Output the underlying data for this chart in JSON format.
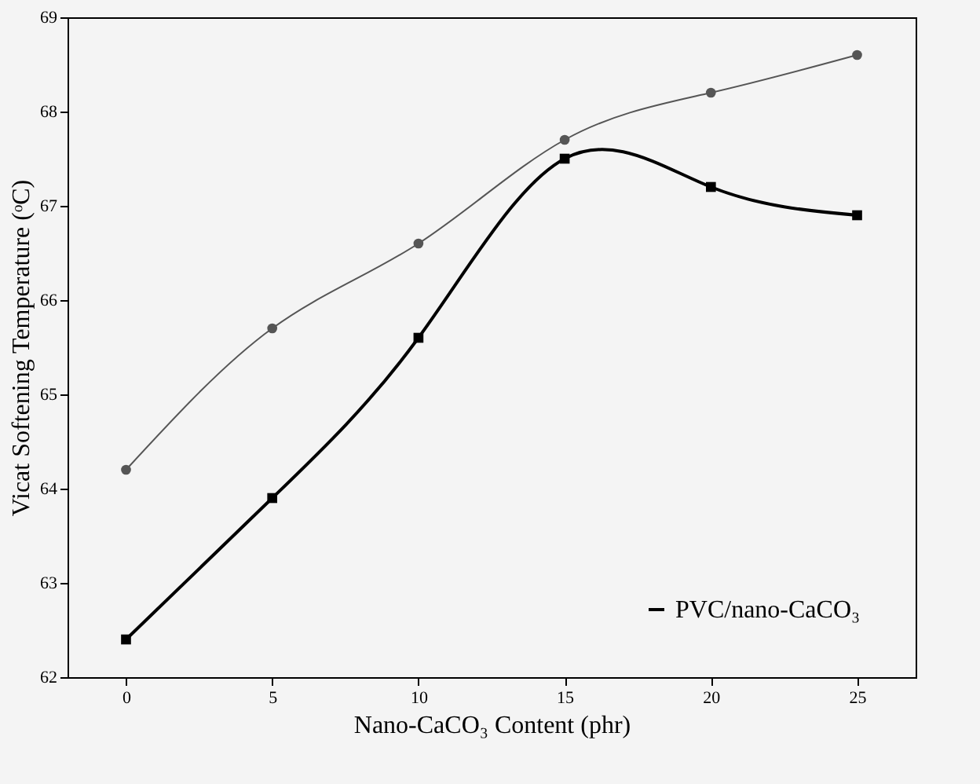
{
  "chart_data": {
    "type": "line",
    "xlabel": "Nano-CaCO₃ Content (phr)",
    "ylabel": "Vicat Softening Temperature (ᵒC)",
    "x": [
      0,
      5,
      10,
      15,
      20,
      25
    ],
    "series": [
      {
        "name": "PVC/nano-CaCO₃",
        "color": "#000000",
        "marker": "square",
        "values": [
          62.4,
          63.9,
          65.6,
          67.5,
          67.2,
          66.9
        ]
      },
      {
        "color": "#555555",
        "marker": "circle",
        "values": [
          64.2,
          65.7,
          66.6,
          67.7,
          68.2,
          68.6
        ]
      }
    ],
    "xlim": [
      -2,
      27
    ],
    "xticks": [
      0,
      5,
      10,
      15,
      20,
      25
    ],
    "ylim": [
      62,
      69
    ],
    "yticks": [
      62,
      63,
      64,
      65,
      66,
      67,
      68,
      69
    ],
    "grid": false,
    "legend": "bottom right"
  }
}
